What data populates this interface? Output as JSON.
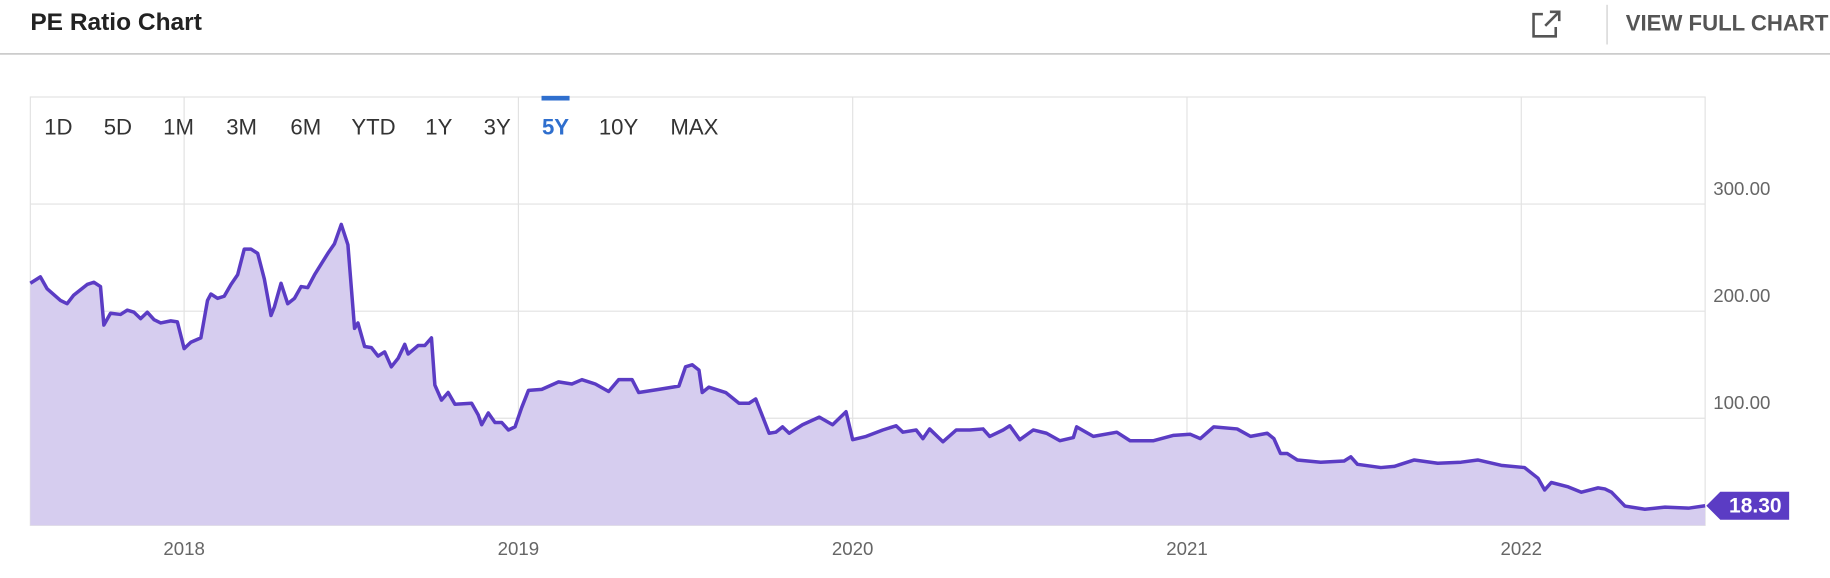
{
  "header": {
    "title": "PE Ratio Chart",
    "action": "VIEW FULL CHART"
  },
  "chart_data": {
    "type": "area",
    "range_buttons": [
      "1D",
      "5D",
      "1M",
      "3M",
      "6M",
      "YTD",
      "1Y",
      "3Y",
      "5Y",
      "10Y",
      "MAX"
    ],
    "selected_range": "5Y",
    "x": [
      2017.54,
      2017.57,
      2017.59,
      2017.63,
      2017.65,
      2017.67,
      2017.71,
      2017.73,
      2017.75,
      2017.76,
      2017.78,
      2017.81,
      2017.83,
      2017.85,
      2017.87,
      2017.89,
      2017.91,
      2017.93,
      2017.96,
      2017.98,
      2018,
      2018.02,
      2018.05,
      2018.07,
      2018.08,
      2018.1,
      2018.12,
      2018.14,
      2018.16,
      2018.18,
      2018.2,
      2018.22,
      2018.24,
      2018.26,
      2018.27,
      2018.29,
      2018.31,
      2018.33,
      2018.35,
      2018.37,
      2018.39,
      2018.41,
      2018.43,
      2018.45,
      2018.47,
      2018.49,
      2018.51,
      2018.52,
      2018.54,
      2018.56,
      2018.58,
      2018.6,
      2018.62,
      2018.64,
      2018.66,
      2018.67,
      2018.7,
      2018.72,
      2018.74,
      2018.75,
      2018.77,
      2018.79,
      2018.81,
      2018.86,
      2018.88,
      2018.89,
      2018.91,
      2018.93,
      2018.95,
      2018.97,
      2018.99,
      2019.01,
      2019.03,
      2019.07,
      2019.12,
      2019.16,
      2019.19,
      2019.23,
      2019.27,
      2019.3,
      2019.34,
      2019.36,
      2019.42,
      2019.48,
      2019.5,
      2019.52,
      2019.54,
      2019.55,
      2019.57,
      2019.62,
      2019.66,
      2019.69,
      2019.71,
      2019.73,
      2019.75,
      2019.77,
      2019.79,
      2019.81,
      2019.85,
      2019.9,
      2019.94,
      2019.98,
      2020,
      2020.04,
      2020.09,
      2020.13,
      2020.15,
      2020.19,
      2020.21,
      2020.23,
      2020.27,
      2020.31,
      2020.35,
      2020.39,
      2020.41,
      2020.45,
      2020.47,
      2020.5,
      2020.54,
      2020.58,
      2020.62,
      2020.66,
      2020.67,
      2020.72,
      2020.79,
      2020.83,
      2020.9,
      2020.96,
      2021.01,
      2021.04,
      2021.08,
      2021.15,
      2021.19,
      2021.24,
      2021.26,
      2021.28,
      2021.3,
      2021.33,
      2021.4,
      2021.47,
      2021.49,
      2021.51,
      2021.58,
      2021.62,
      2021.68,
      2021.75,
      2021.82,
      2021.87,
      2021.94,
      2022.01,
      2022.05,
      2022.07,
      2022.09,
      2022.14,
      2022.18,
      2022.23,
      2022.25,
      2022.27,
      2022.31,
      2022.37,
      2022.43,
      2022.5,
      2022.55
    ],
    "values": [
      226,
      232,
      221,
      210,
      207,
      215,
      225,
      227,
      223,
      187,
      198,
      197,
      201,
      199,
      193,
      199,
      192,
      189,
      191,
      190,
      165,
      171,
      175,
      210,
      216,
      212,
      214,
      225,
      234,
      258,
      258,
      254,
      230,
      196,
      204,
      226,
      207,
      212,
      223,
      222,
      234,
      244,
      254,
      263,
      281,
      262,
      184,
      189,
      167,
      166,
      158,
      162,
      148,
      156,
      169,
      160,
      168,
      168,
      175,
      131,
      117,
      124,
      113,
      114,
      103,
      94,
      105,
      96,
      96,
      89,
      92,
      110,
      126,
      127,
      134,
      132,
      136,
      132,
      125,
      136,
      136,
      124,
      127,
      130,
      148,
      150,
      145,
      124,
      129,
      124,
      114,
      114,
      118,
      102,
      86,
      87,
      92,
      86,
      94,
      101,
      94,
      106,
      80,
      83,
      89,
      93,
      87,
      89,
      81,
      90,
      78,
      89,
      89,
      90,
      83,
      89,
      93,
      80,
      89,
      86,
      79,
      82,
      92,
      83,
      87,
      79,
      79,
      84,
      85,
      81,
      92,
      90,
      83,
      86,
      81,
      67,
      67,
      61,
      59,
      60,
      64,
      57,
      54,
      55,
      61,
      58,
      59,
      61,
      56,
      54,
      44,
      33,
      40,
      36,
      31,
      35,
      34,
      31,
      18,
      15,
      17,
      16,
      18.3
    ],
    "value_labels": [
      null,
      null,
      null,
      null,
      null,
      null,
      null,
      null,
      null,
      null,
      null,
      null,
      null,
      null,
      null,
      null,
      null,
      null,
      null,
      null,
      null,
      null,
      null,
      null,
      null,
      null,
      null,
      null,
      null,
      null,
      null,
      null,
      null,
      null,
      null,
      null,
      null,
      null,
      null,
      null,
      null,
      null,
      null,
      null,
      null,
      null,
      null,
      null,
      null,
      null,
      null,
      null,
      null,
      null,
      null,
      null,
      null,
      null,
      null,
      null,
      null,
      null,
      null,
      null,
      null,
      null,
      null,
      null,
      null,
      null,
      null,
      null,
      null,
      null,
      null,
      null,
      null,
      null,
      null,
      null,
      null,
      null,
      null,
      null,
      null,
      null,
      null,
      null,
      null,
      null,
      null,
      null,
      null,
      null,
      null,
      null,
      null,
      null,
      null,
      null,
      null,
      null,
      null,
      null,
      null,
      null,
      null,
      null,
      null,
      null,
      null,
      null,
      null,
      null,
      null,
      null,
      null,
      null,
      null,
      null,
      null,
      null,
      null,
      null,
      null,
      null,
      null,
      null,
      null,
      null,
      null,
      null,
      null,
      null,
      null,
      null,
      null,
      null,
      null,
      null,
      null,
      null,
      null,
      null,
      null,
      null,
      null,
      null,
      null,
      null,
      null,
      null,
      null,
      null,
      null,
      null,
      null,
      null,
      null,
      null,
      null,
      null,
      "18.30"
    ],
    "color": "#5b3cc4",
    "fill_color": "#d6cdef",
    "xlim": [
      2017.54,
      2022.55
    ],
    "xticks": [
      2018,
      2019,
      2020,
      2021,
      2022
    ],
    "ylim": [
      0,
      400
    ],
    "yticks": [
      {
        "value": 100,
        "label": "100.00"
      },
      {
        "value": 200,
        "label": "200.00"
      },
      {
        "value": 300,
        "label": "300.00"
      }
    ],
    "grid": true
  }
}
